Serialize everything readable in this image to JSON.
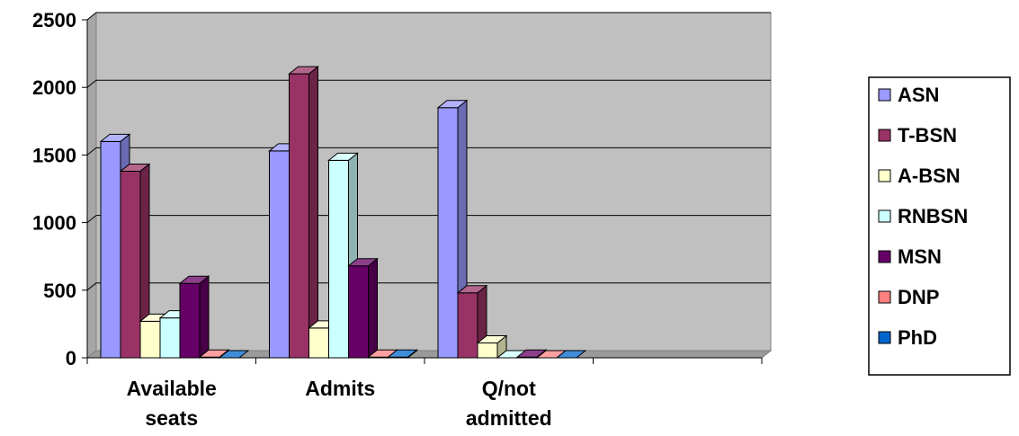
{
  "chart_data": {
    "type": "bar",
    "title": "",
    "xlabel": "",
    "ylabel": "",
    "ylim": [
      0,
      2500
    ],
    "yticks": [
      0,
      500,
      1000,
      1500,
      2000,
      2500
    ],
    "grid": true,
    "legend_position": "right",
    "three_d": true,
    "categories": [
      [
        "Available",
        "seats"
      ],
      [
        "Admits"
      ],
      [
        "Q/not",
        "admitted"
      ],
      [
        ""
      ]
    ],
    "series": [
      {
        "name": "ASN",
        "color": "#9999ff",
        "values": [
          1600,
          1530,
          1850,
          null
        ]
      },
      {
        "name": "T-BSN",
        "color": "#993366",
        "values": [
          1380,
          2100,
          480,
          null
        ]
      },
      {
        "name": "A-BSN",
        "color": "#ffffcc",
        "values": [
          270,
          220,
          110,
          null
        ]
      },
      {
        "name": "RNBSN",
        "color": "#ccffff",
        "values": [
          295,
          1460,
          0,
          null
        ]
      },
      {
        "name": "MSN",
        "color": "#660066",
        "values": [
          550,
          680,
          5,
          null
        ]
      },
      {
        "name": "DNP",
        "color": "#ff8080",
        "values": [
          5,
          5,
          0,
          null
        ]
      },
      {
        "name": "PhD",
        "color": "#0066cc",
        "values": [
          0,
          5,
          0,
          null
        ]
      }
    ]
  }
}
